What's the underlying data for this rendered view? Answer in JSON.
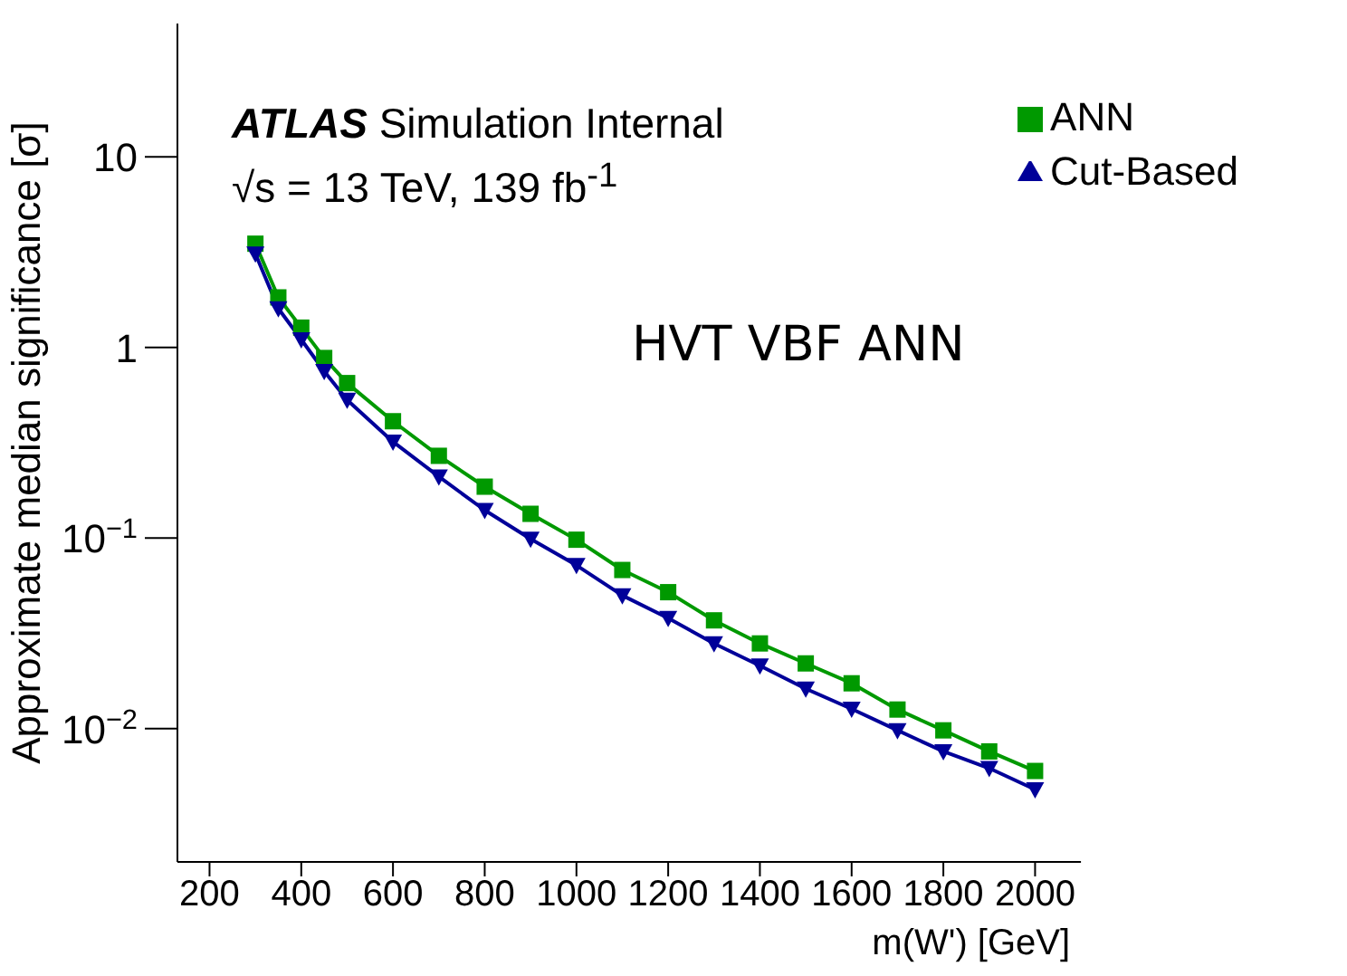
{
  "chart_data": {
    "type": "line",
    "log": "y",
    "xlabel": "m(W') [GeV]",
    "ylabel": "Approximate median significance [σ]",
    "annotations": [
      "ATLAS Simulation Internal",
      "√s = 13 TeV, 139 fb$^{-1}$",
      "HVT VBF ANN"
    ],
    "x": [
      300,
      350,
      400,
      450,
      500,
      600,
      700,
      800,
      900,
      1000,
      1100,
      1200,
      1300,
      1400,
      1500,
      1600,
      1700,
      1800,
      1900,
      2000
    ],
    "series": [
      {
        "name": "ANN",
        "color": "#009900",
        "marker": "square",
        "values": [
          3.5,
          1.83,
          1.27,
          0.88,
          0.65,
          0.41,
          0.27,
          0.186,
          0.134,
          0.098,
          0.068,
          0.052,
          0.037,
          0.028,
          0.022,
          0.0173,
          0.0126,
          0.0098,
          0.0076,
          0.006
        ]
      },
      {
        "name": "Cut-Based",
        "color": "#000099",
        "marker": "triangle",
        "values": [
          3.1,
          1.6,
          1.1,
          0.75,
          0.53,
          0.32,
          0.21,
          0.14,
          0.099,
          0.072,
          0.05,
          0.038,
          0.028,
          0.0214,
          0.0162,
          0.0127,
          0.0098,
          0.0076,
          0.0062,
          0.0048
        ]
      }
    ],
    "xlim": [
      130,
      2100
    ],
    "xticks": [
      200,
      400,
      600,
      800,
      1000,
      1200,
      1400,
      1600,
      1800,
      2000
    ],
    "ylim": [
      0.002,
      50
    ],
    "yticks": [
      {
        "value": 0.01,
        "label": "10$^{−2}$"
      },
      {
        "value": 0.1,
        "label": "10$^{−1}$"
      },
      1,
      10
    ],
    "grid": false,
    "legend": "top right",
    "line_style": "solid"
  }
}
